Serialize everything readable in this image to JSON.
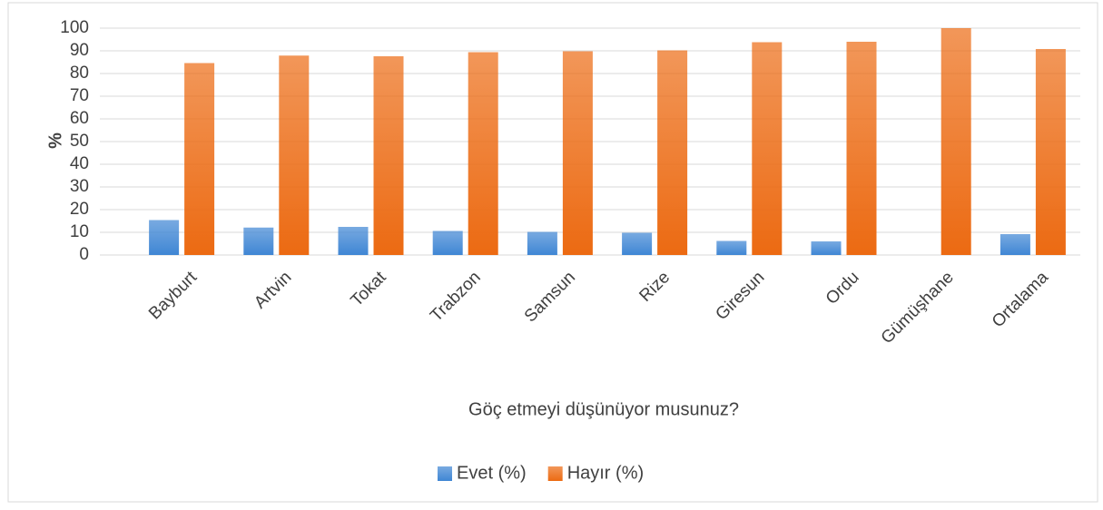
{
  "chart_data": {
    "type": "bar",
    "ylabel": "%",
    "xlabel": "Göç etmeyi düşünüyor musunuz?",
    "categories": [
      "Bayburt",
      "Artvin",
      "Tokat",
      "Trabzon",
      "Samsun",
      "Rize",
      "Giresun",
      "Ordu",
      "Gümüşhane",
      "Ortalama"
    ],
    "series": [
      {
        "name": "Evet (%)",
        "color": "#3f86d4",
        "values": [
          15.4,
          12.1,
          12.4,
          10.6,
          10.2,
          9.8,
          6.2,
          6.0,
          0,
          9.2
        ]
      },
      {
        "name": "Hayır (%)",
        "color": "#ec6a12",
        "values": [
          84.6,
          87.9,
          87.6,
          89.4,
          89.8,
          90.2,
          93.8,
          94.0,
          100,
          90.8
        ]
      }
    ],
    "ylim": [
      0,
      100
    ],
    "yticks": [
      0,
      10,
      20,
      30,
      40,
      50,
      60,
      70,
      80,
      90,
      100
    ],
    "grid": true,
    "legend": "bottom"
  }
}
